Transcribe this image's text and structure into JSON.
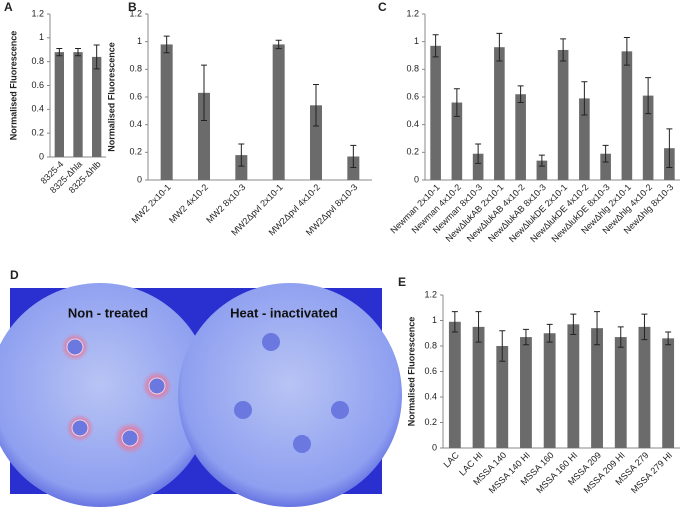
{
  "chart_data": [
    {
      "type": "bar",
      "label": "A",
      "y_label": "Normalised Fluorescence",
      "color": "#6b6b6b",
      "categories": [
        "8325-4",
        "8325-Δhla",
        "8325-Δhlb"
      ],
      "values": [
        0.88,
        0.88,
        0.84
      ],
      "errors": [
        0.03,
        0.03,
        0.1
      ],
      "ylim": [
        0,
        1.2
      ],
      "yticks": [
        0,
        0.2,
        0.4,
        0.6,
        0.8,
        1,
        1.2
      ]
    },
    {
      "type": "bar",
      "label": "B",
      "y_label": "Normalised Fluorescence",
      "color": "#6b6b6b",
      "categories": [
        "MW2 2x10-1",
        "MW2 4x10-2",
        "MW2 8x10-3",
        "MW2Δpvl 2x10-1",
        "MW2Δpvl 4x10-2",
        "MW2Δpvl 8x10-3"
      ],
      "values": [
        0.98,
        0.63,
        0.18,
        0.98,
        0.54,
        0.17
      ],
      "errors": [
        0.06,
        0.2,
        0.08,
        0.03,
        0.15,
        0.08
      ],
      "ylim": [
        0,
        1.2
      ],
      "yticks": [
        0,
        0.2,
        0.4,
        0.6,
        0.8,
        1,
        1.2
      ]
    },
    {
      "type": "bar",
      "label": "C",
      "color": "#6b6b6b",
      "categories": [
        "Newman 2x10-1",
        "Newman 4x10-2",
        "Newman 8x10-3",
        "NewΔlukAB 2x10-1",
        "NewΔlukAB 4x10-2",
        "NewΔlukAB 8x10-3",
        "NewΔlukDE 2x10-1",
        "NewΔlukDE 4x10-2",
        "NewΔlukDE 8x10-3",
        "NewΔhlg 2x10-1",
        "NewΔhlg 4x10-2",
        "NewΔhlg 8x10-3"
      ],
      "values": [
        0.97,
        0.56,
        0.19,
        0.96,
        0.62,
        0.14,
        0.94,
        0.59,
        0.19,
        0.93,
        0.61,
        0.23
      ],
      "errors": [
        0.08,
        0.1,
        0.07,
        0.1,
        0.06,
        0.04,
        0.08,
        0.12,
        0.06,
        0.1,
        0.13,
        0.14
      ],
      "ylim": [
        0,
        1.2
      ],
      "yticks": [
        0,
        0.2,
        0.4,
        0.6,
        0.8,
        1,
        1.2
      ]
    },
    {
      "type": "bar",
      "label": "E",
      "y_label": "Normalised Fluorescence",
      "color": "#6b6b6b",
      "categories": [
        "LAC",
        "LAC HI",
        "MSSA 140",
        "MSSA 140 HI",
        "MSSA 160",
        "MSSA 160 HI",
        "MSSA 209",
        "MSSA 209 HI",
        "MSSA 279",
        "MSSA 279 HI"
      ],
      "values": [
        0.99,
        0.95,
        0.8,
        0.87,
        0.9,
        0.97,
        0.94,
        0.87,
        0.95,
        0.86
      ],
      "errors": [
        0.08,
        0.12,
        0.12,
        0.06,
        0.07,
        0.08,
        0.13,
        0.08,
        0.1,
        0.05
      ],
      "ylim": [
        0,
        1.2
      ],
      "yticks": [
        0,
        0.2,
        0.4,
        0.6,
        0.8,
        1,
        1.2
      ]
    }
  ],
  "photo": {
    "label": "D",
    "captions": [
      "Non - treated",
      "Heat - inactivated"
    ]
  }
}
